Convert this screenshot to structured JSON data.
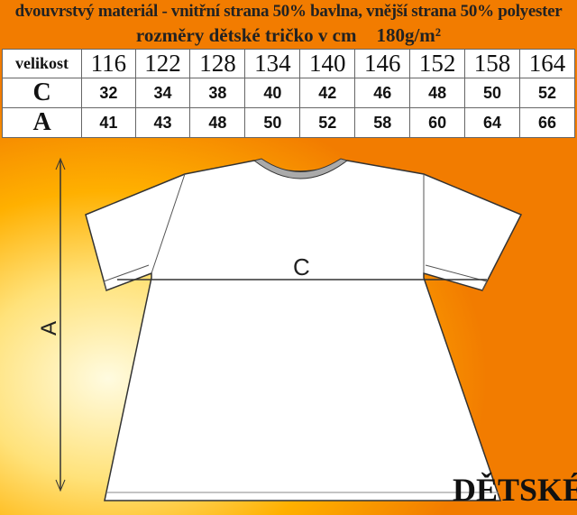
{
  "material_line": "dvouvrstvý materiál - vnitřní strana 50% bavlna, vnější strana 50% polyester",
  "title": "rozměry dětské tričko v cm",
  "weight": "180g/m²",
  "table": {
    "header_label": "velikost",
    "sizes": [
      "116",
      "122",
      "128",
      "134",
      "140",
      "146",
      "152",
      "158",
      "164"
    ],
    "rows": [
      {
        "label": "C",
        "values": [
          "32",
          "34",
          "38",
          "40",
          "42",
          "46",
          "48",
          "50",
          "52"
        ]
      },
      {
        "label": "A",
        "values": [
          "41",
          "43",
          "48",
          "50",
          "52",
          "58",
          "60",
          "64",
          "66"
        ]
      }
    ]
  },
  "diagram": {
    "width_label": "C",
    "length_label": "A"
  },
  "brand": "DĚTSKÉ"
}
